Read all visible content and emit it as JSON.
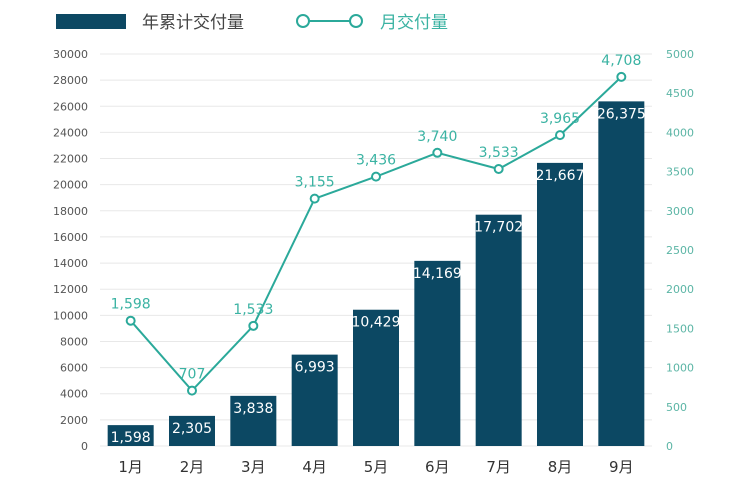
{
  "chart_data": {
    "type": "bar+line",
    "categories": [
      "1月",
      "2月",
      "3月",
      "4月",
      "5月",
      "6月",
      "7月",
      "8月",
      "9月"
    ],
    "series": [
      {
        "name": "年累计交付量",
        "type": "bar",
        "axis": "left",
        "values": [
          1598,
          2305,
          3838,
          6993,
          10429,
          14169,
          17702,
          21667,
          26375
        ],
        "labels": [
          "1,598",
          "2,305",
          "3,838",
          "6,993",
          "10,429",
          "14,169",
          "17,702",
          "21,667",
          "26,375"
        ],
        "color": "#0c4863"
      },
      {
        "name": "月交付量",
        "type": "line",
        "axis": "right",
        "values": [
          1598,
          707,
          1533,
          3155,
          3436,
          3740,
          3533,
          3965,
          4708
        ],
        "labels": [
          "1,598",
          "707",
          "1,533",
          "3,155",
          "3,436",
          "3,740",
          "3,533",
          "3,965",
          "4,708"
        ],
        "color": "#2ba99a"
      }
    ],
    "y_left": {
      "range": [
        0,
        30000
      ],
      "ticks": [
        "0",
        "2000",
        "4000",
        "6000",
        "8000",
        "10000",
        "12000",
        "14000",
        "16000",
        "18000",
        "20000",
        "22000",
        "24000",
        "26000",
        "28000",
        "30000"
      ]
    },
    "y_right": {
      "range": [
        0,
        5000
      ],
      "ticks": [
        "0",
        "500",
        "1000",
        "1500",
        "2000",
        "2500",
        "3000",
        "3500",
        "4000",
        "4500",
        "5000"
      ]
    },
    "grid": true,
    "legend": "top-left"
  }
}
